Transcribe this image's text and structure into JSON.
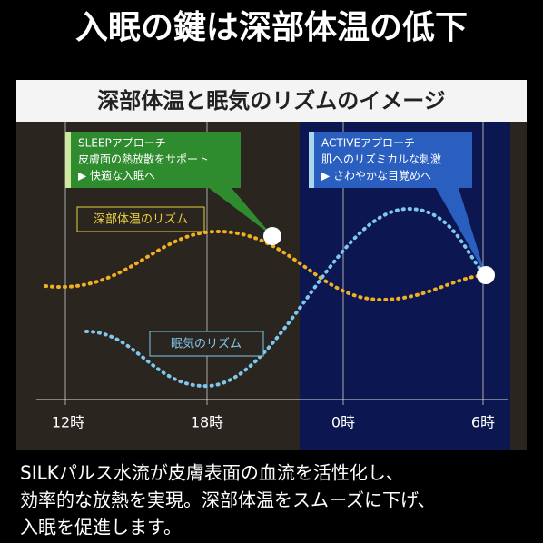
{
  "header": {
    "title": "入眠の鍵は深部体温の低下"
  },
  "panel": {
    "title": "深部体温と眠気のリズムのイメージ",
    "callouts": [
      {
        "lines": [
          "SLEEPアプローチ",
          "皮膚面の熱放散をサポート",
          "▶ 快適な入眠へ"
        ]
      },
      {
        "lines": [
          "ACTIVEアプローチ",
          "肌へのリズミカルな刺激",
          "▶ さわやかな目覚めへ"
        ]
      }
    ],
    "curve_labels": [
      "深部体温のリズム",
      "眠気のリズム"
    ],
    "time_labels": [
      "12時",
      "18時",
      "0時",
      "6時"
    ]
  },
  "body": {
    "lines": [
      "SILKパルス水流が皮膚表面の血流を活性化し、",
      "効率的な放熱を実現。深部体温をスムーズに下げ、",
      "入眠を促進します。"
    ]
  }
}
